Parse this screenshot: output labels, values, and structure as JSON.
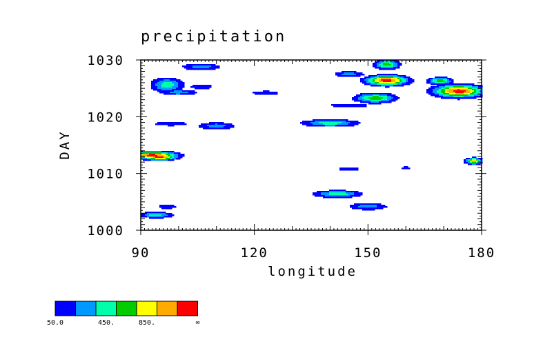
{
  "chart_data": {
    "type": "heatmap",
    "title": "precipitation",
    "xlabel": "longitude",
    "ylabel": "DAY",
    "xlim": [
      90,
      180
    ],
    "ylim": [
      1000,
      1030
    ],
    "x_ticks": [
      "90",
      "120",
      "150",
      "180"
    ],
    "y_ticks": [
      "1000",
      "1010",
      "1020",
      "1030"
    ],
    "levels": [
      50,
      200,
      450,
      650,
      850,
      1050
    ],
    "colorbar": {
      "colors": [
        "#0000ff",
        "#0099ff",
        "#00ffaa",
        "#00cc00",
        "#ffff00",
        "#ffaa00",
        "#ff0000"
      ],
      "labels": [
        "50.0",
        "450.",
        "850.",
        "∞"
      ]
    },
    "blobs": [
      {
        "lon": 93,
        "day": 1013.2,
        "peak": 7,
        "spread": [
          6,
          0.6
        ]
      },
      {
        "lon": 95,
        "day": 1012.9,
        "peak": 7,
        "spread": [
          4,
          0.5
        ]
      },
      {
        "lon": 94,
        "day": 1002.7,
        "peak": 3,
        "spread": [
          4,
          0.5
        ]
      },
      {
        "lon": 97,
        "day": 1004.2,
        "peak": 1,
        "spread": [
          3,
          0.6
        ]
      },
      {
        "lon": 97,
        "day": 1025.6,
        "peak": 3,
        "spread": [
          4,
          1.2
        ]
      },
      {
        "lon": 100,
        "day": 1024.3,
        "peak": 2,
        "spread": [
          5,
          0.5
        ]
      },
      {
        "lon": 106,
        "day": 1028.8,
        "peak": 2,
        "spread": [
          5,
          0.6
        ]
      },
      {
        "lon": 106,
        "day": 1025.3,
        "peak": 1,
        "spread": [
          4,
          0.6
        ]
      },
      {
        "lon": 98,
        "day": 1018.8,
        "peak": 1,
        "spread": [
          6,
          0.5
        ]
      },
      {
        "lon": 110,
        "day": 1018.4,
        "peak": 2,
        "spread": [
          5,
          0.6
        ]
      },
      {
        "lon": 123,
        "day": 1024.2,
        "peak": 1,
        "spread": [
          5,
          0.5
        ]
      },
      {
        "lon": 142,
        "day": 1006.4,
        "peak": 3,
        "spread": [
          6,
          0.6
        ]
      },
      {
        "lon": 150,
        "day": 1004.2,
        "peak": 2,
        "spread": [
          5,
          0.6
        ]
      },
      {
        "lon": 140,
        "day": 1018.9,
        "peak": 3,
        "spread": [
          7,
          0.6
        ]
      },
      {
        "lon": 145,
        "day": 1022.0,
        "peak": 1,
        "spread": [
          7,
          0.5
        ]
      },
      {
        "lon": 152,
        "day": 1023.3,
        "peak": 4,
        "spread": [
          5,
          0.8
        ]
      },
      {
        "lon": 155,
        "day": 1026.4,
        "peak": 7,
        "spread": [
          5,
          0.8
        ]
      },
      {
        "lon": 155,
        "day": 1029.2,
        "peak": 4,
        "spread": [
          3,
          0.8
        ]
      },
      {
        "lon": 145,
        "day": 1027.5,
        "peak": 2,
        "spread": [
          4,
          0.5
        ]
      },
      {
        "lon": 174,
        "day": 1024.5,
        "peak": 7,
        "spread": [
          6,
          1.0
        ]
      },
      {
        "lon": 169,
        "day": 1026.3,
        "peak": 4,
        "spread": [
          3,
          0.6
        ]
      },
      {
        "lon": 178,
        "day": 1012.2,
        "peak": 6,
        "spread": [
          2,
          0.5
        ]
      },
      {
        "lon": 145,
        "day": 1010.8,
        "peak": 1,
        "spread": [
          4,
          0.4
        ]
      },
      {
        "lon": 160,
        "day": 1011.0,
        "peak": 1,
        "spread": [
          2,
          0.3
        ]
      }
    ]
  }
}
